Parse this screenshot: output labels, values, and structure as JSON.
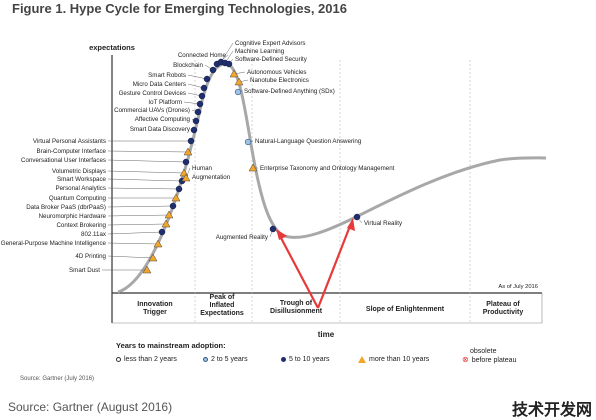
{
  "title": "Figure 1. Hype Cycle for Emerging Technologies, 2016",
  "y_axis_label": "expectations",
  "x_axis_label": "time",
  "as_of": "As of July 2016",
  "phases": [
    "Innovation Trigger",
    "Peak of Inflated Expectations",
    "Trough of Disillusionment",
    "Slope of Enlightenment",
    "Plateau of Productivity"
  ],
  "technologies": [
    {
      "name": "Smart Dust",
      "marker": "triangle"
    },
    {
      "name": "4D Printing",
      "marker": "triangle"
    },
    {
      "name": "General-Purpose Machine Intelligence",
      "marker": "triangle"
    },
    {
      "name": "802.11ax",
      "marker": "dark"
    },
    {
      "name": "Context Brokering",
      "marker": "triangle"
    },
    {
      "name": "Neuromorphic Hardware",
      "marker": "triangle"
    },
    {
      "name": "Data Broker PaaS (dbrPaaS)",
      "marker": "dark"
    },
    {
      "name": "Quantum Computing",
      "marker": "triangle"
    },
    {
      "name": "Personal Analytics",
      "marker": "dark"
    },
    {
      "name": "Smart Workspace",
      "marker": "dark"
    },
    {
      "name": "Volumetric Displays",
      "marker": "triangle"
    },
    {
      "name": "Conversational User Interfaces",
      "marker": "dark"
    },
    {
      "name": "Brain-Computer Interface",
      "marker": "triangle"
    },
    {
      "name": "Virtual Personal Assistants",
      "marker": "dark"
    },
    {
      "name": "Smart Data Discovery",
      "marker": "dark"
    },
    {
      "name": "Affective Computing",
      "marker": "dark"
    },
    {
      "name": "Commercial UAVs (Drones)",
      "marker": "dark"
    },
    {
      "name": "IoT Platform",
      "marker": "dark"
    },
    {
      "name": "Gesture Control Devices",
      "marker": "dark"
    },
    {
      "name": "Micro Data Centers",
      "marker": "dark"
    },
    {
      "name": "Smart Robots",
      "marker": "dark"
    },
    {
      "name": "Blockchain",
      "marker": "dark"
    },
    {
      "name": "Connected Home",
      "marker": "dark"
    },
    {
      "name": "Cognitive Expert Advisors",
      "marker": "dark"
    },
    {
      "name": "Machine Learning",
      "marker": "dark"
    },
    {
      "name": "Software-Defined Security",
      "marker": "dark"
    },
    {
      "name": "Autonomous Vehicles",
      "marker": "triangle"
    },
    {
      "name": "Nanotube Electronics",
      "marker": "triangle"
    },
    {
      "name": "Software-Defined Anything (SDx)",
      "marker": "light"
    },
    {
      "name": "Natural-Language Question Answering",
      "marker": "light"
    },
    {
      "name": "Enterprise Taxonomy and Ontology Management",
      "marker": "triangle"
    },
    {
      "name": "Human Augmentation",
      "marker": "triangle"
    },
    {
      "name": "Augmented Reality",
      "marker": "dark"
    },
    {
      "name": "Virtual Reality",
      "marker": "dark"
    }
  ],
  "legend": {
    "heading": "Years to mainstream adoption:",
    "items": [
      {
        "marker": "hollow",
        "label": "less than 2 years"
      },
      {
        "marker": "light",
        "label": "2 to 5 years"
      },
      {
        "marker": "dark",
        "label": "5 to 10 years"
      },
      {
        "marker": "triangle",
        "label": "more than 10 years"
      },
      {
        "marker": "obsolete",
        "label": "before plateau"
      }
    ],
    "obsolete_word": "obsolete"
  },
  "source_small": "Source: Gartner (July 2016)",
  "source_big": "Source: Gartner (August 2016)",
  "watermark": "技术开发网",
  "colors": {
    "curve": "#a8a8a8",
    "dark_marker": "#1f2f6e",
    "light_marker": "#9ec3e6",
    "triangle_marker": "#f4a62a",
    "arrow": "#e8393a",
    "axis": "#333333"
  }
}
